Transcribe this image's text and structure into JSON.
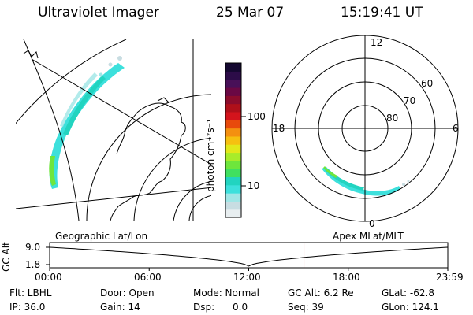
{
  "header": {
    "instrument": "Ultraviolet Imager",
    "date": "25 Mar 07",
    "time": "15:19:41 UT"
  },
  "colorbar": {
    "label": "photon cm⁻²s⁻¹",
    "ticks": [
      "100",
      "10"
    ],
    "scale": "log",
    "colors": [
      "#e8eef0",
      "#c8dde2",
      "#9fe6e6",
      "#3de0dc",
      "#22d4c0",
      "#40e060",
      "#6ee63c",
      "#a8ec2a",
      "#e2e81a",
      "#f6c010",
      "#f49010",
      "#e84a0c",
      "#d4141c",
      "#b0101a",
      "#8c0c2c",
      "#6a0844",
      "#481058",
      "#2c0c48",
      "#140830"
    ]
  },
  "left_map": {
    "label": "Geographic Lat/Lon"
  },
  "polar_plot": {
    "label": "Apex  MLat/MLT",
    "mlt_labels": {
      "top": "12",
      "left": "18",
      "right": "6",
      "bottom": "0"
    },
    "lat_labels": [
      "60",
      "70",
      "80"
    ]
  },
  "timeline": {
    "ylabel": "GC Alt",
    "ytick_top": "9.0",
    "ytick_bottom": "1.8",
    "xticks": [
      "00:00",
      "06:00",
      "12:00",
      "18:00",
      "23:59"
    ],
    "marker_time": "15:19:41",
    "marker_color": "#cc0000"
  },
  "status": {
    "flt": "Flt: LBHL",
    "ip": "IP: 36.0",
    "door": "Door: Open",
    "gain": "Gain: 14",
    "mode": "Mode: Normal",
    "dsp": "Dsp:      0.0",
    "gcalt": "GC Alt: 6.2 Re",
    "seq": "Seq: 39",
    "glat": "GLat: -62.8",
    "glon": "GLon: 124.1"
  }
}
